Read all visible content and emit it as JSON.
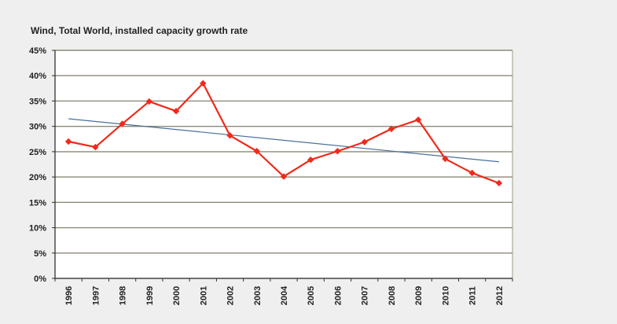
{
  "chart_data": {
    "type": "line",
    "title": "Wind, Total World, installed capacity growth rate",
    "xlabel": "",
    "ylabel": "",
    "categories": [
      "1996",
      "1997",
      "1998",
      "1999",
      "2000",
      "2001",
      "2002",
      "2003",
      "2004",
      "2005",
      "2006",
      "2007",
      "2008",
      "2009",
      "2010",
      "2011",
      "2012"
    ],
    "series": [
      {
        "name": "Growth rate",
        "color": "#f02a1a",
        "marker": "diamond",
        "values": [
          27.0,
          25.9,
          30.5,
          34.9,
          33.0,
          38.5,
          28.2,
          25.1,
          20.1,
          23.4,
          25.1,
          26.9,
          29.5,
          31.3,
          23.6,
          20.8,
          18.8
        ]
      },
      {
        "name": "Linear trend",
        "color": "#4a6f9a",
        "type": "trendline",
        "start": 31.5,
        "end": 23.0
      }
    ],
    "ylim": [
      0,
      45
    ],
    "yticks": [
      0,
      5,
      10,
      15,
      20,
      25,
      30,
      35,
      40,
      45
    ],
    "ytick_labels": [
      "0%",
      "5%",
      "10%",
      "15%",
      "20%",
      "25%",
      "30%",
      "35%",
      "40%",
      "45%"
    ],
    "grid": true,
    "legend": "none"
  }
}
